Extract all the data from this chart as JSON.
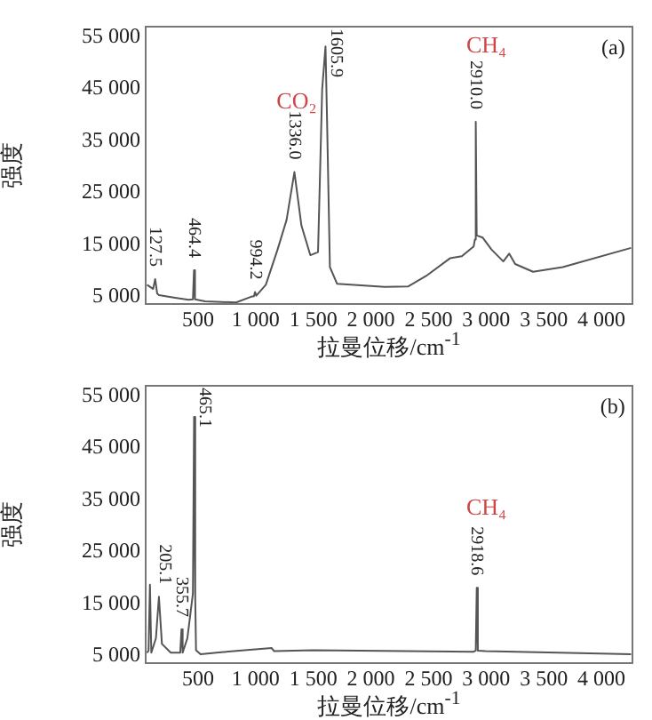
{
  "chart_data": [
    {
      "type": "line",
      "xlabel": "拉曼位移/cm$^{-1}$",
      "ylabel": "强度",
      "xlim": [
        45,
        4270
      ],
      "ylim": [
        3600,
        57000
      ],
      "xticks": [
        500,
        {
          "value": 1000,
          "label": "1 000"
        },
        {
          "value": 1500,
          "label": "1 500"
        },
        {
          "value": 2000,
          "label": "2 000"
        },
        {
          "value": 2500,
          "label": "2 500"
        },
        {
          "value": 3000,
          "label": "3 000"
        },
        {
          "value": 3500,
          "label": "3 500"
        },
        {
          "value": 4000,
          "label": "4 000"
        }
      ],
      "yticks": [
        {
          "value": 5000,
          "label": "5 000"
        },
        {
          "value": 15000,
          "label": "15 000"
        },
        {
          "value": 25000,
          "label": "25 000"
        },
        {
          "value": 35000,
          "label": "35 000"
        },
        {
          "value": 45000,
          "label": "45 000"
        },
        {
          "value": 55000,
          "label": "55 000"
        }
      ],
      "grid": false,
      "legend": false,
      "marker": "none",
      "line_style": "solid",
      "series": [
        {
          "color": "#555555",
          "x": [
            57,
            110,
            127.5,
            145,
            160,
            300,
            418,
            455,
            464.4,
            473,
            560,
            830,
            960,
            985,
            994.2,
            1005,
            1088,
            1190,
            1268,
            1336.0,
            1397,
            1474,
            1541,
            1577,
            1605.9,
            1619,
            1644,
            1706,
            2119,
            2325,
            2479,
            2686,
            2789,
            2892,
            2902,
            2910.0,
            2918,
            2969,
            3046,
            3149,
            3200,
            3252,
            3407,
            3665,
            4258
          ],
          "values": [
            7300,
            6500,
            8400,
            5600,
            5300,
            4800,
            4400,
            4500,
            10100,
            4500,
            4100,
            3900,
            5000,
            5100,
            5900,
            5200,
            7300,
            14100,
            19800,
            29000,
            18700,
            13000,
            13600,
            45000,
            53200,
            39300,
            10700,
            7500,
            6900,
            7000,
            9000,
            12400,
            12800,
            14700,
            16000,
            38700,
            16800,
            16400,
            14100,
            11800,
            13300,
            11300,
            9800,
            10700,
            14400
          ]
        }
      ],
      "annotations": [
        {
          "text": "127.5",
          "x": 127.5,
          "y": 8400
        },
        {
          "text": "464.4",
          "x": 464.4,
          "y": 10100
        },
        {
          "text": "994.2",
          "x": 994.2,
          "y": 5900
        },
        {
          "text": "1336.0",
          "x": 1336.0,
          "y": 29000
        },
        {
          "text": "1605.9",
          "x": 1605.9,
          "y": 53200
        },
        {
          "text": "2910.0",
          "x": 2910.0,
          "y": 38700
        },
        "CO₂",
        "CH₄",
        "(a)"
      ]
    },
    {
      "type": "line",
      "xlabel": "拉曼位移/cm$^{-1}$",
      "ylabel": "强度",
      "xlim": [
        45,
        4270
      ],
      "ylim": [
        3600,
        57000
      ],
      "xticks": [
        500,
        {
          "value": 1000,
          "label": "1 000"
        },
        {
          "value": 1500,
          "label": "1 500"
        },
        {
          "value": 2000,
          "label": "2 000"
        },
        {
          "value": 2500,
          "label": "2 500"
        },
        {
          "value": 3000,
          "label": "3 000"
        },
        {
          "value": 3500,
          "label": "3 500"
        },
        {
          "value": 4000,
          "label": "4 000"
        }
      ],
      "yticks": [
        {
          "value": 5000,
          "label": "5 000"
        },
        {
          "value": 15000,
          "label": "15 000"
        },
        {
          "value": 25000,
          "label": "25 000"
        },
        {
          "value": 35000,
          "label": "35 000"
        },
        {
          "value": 45000,
          "label": "45 000"
        },
        {
          "value": 55000,
          "label": "55 000"
        }
      ],
      "grid": false,
      "legend": false,
      "marker": "none",
      "line_style": "solid",
      "series": [
        {
          "color": "#555555",
          "x": [
            57,
            70,
            82,
            94,
            134,
            160,
            186,
            263,
            345,
            355.7,
            366,
            407,
            455,
            465.1,
            475,
            482,
            521,
            700,
            1139,
            1160,
            1500,
            2892,
            2910,
            2918.6,
            2928,
            2995,
            4258
          ],
          "values": [
            5600,
            6000,
            18700,
            5600,
            8400,
            16400,
            7300,
            5600,
            5600,
            10100,
            5600,
            8400,
            17000,
            51000,
            16400,
            6100,
            5300,
            5700,
            6500,
            5900,
            6100,
            5800,
            6000,
            18100,
            6000,
            5900,
            5300
          ]
        }
      ],
      "annotations": [
        {
          "text": "205.1",
          "x": 205.1,
          "y": 16400
        },
        {
          "text": "355.7",
          "x": 355.7,
          "y": 10100
        },
        {
          "text": "465.1",
          "x": 465.1,
          "y": 51000
        },
        {
          "text": "2918.6",
          "x": 2918.6,
          "y": 18100
        },
        "CH₄",
        "(b)"
      ]
    }
  ]
}
